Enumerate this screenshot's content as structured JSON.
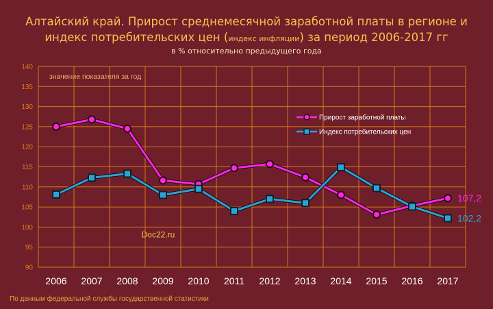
{
  "title_line1": "Алтайский край. Прирост среднемесячной заработной платы в регионе и",
  "title_line2_main": "индекс потребительских цен (",
  "title_line2_small": "индекс инфляции",
  "title_line2_end": ") за период 2006-2017 гг",
  "subtitle": "в % относительно предыдущего года",
  "footer": "По данным федеральной службы государственной статистики",
  "colors": {
    "background": "#6f1f2a",
    "grid": "#d97a16",
    "wage": "#ff26e6",
    "cpi": "#2aa3d6",
    "title": "#f4c24e"
  },
  "chart_data": {
    "type": "line",
    "ylabel_note": "значение показателя за год",
    "watermark": "Doc22.ru",
    "x": [
      "2006",
      "2007",
      "2008",
      "2009",
      "2010",
      "2011",
      "2012",
      "2013",
      "2014",
      "2015",
      "2016",
      "2017"
    ],
    "yticks": [
      "90",
      "95",
      "100",
      "105",
      "110",
      "115",
      "120",
      "125",
      "130",
      "135",
      "140"
    ],
    "ylim": [
      90,
      140
    ],
    "grid": true,
    "legend_position": "right",
    "series": [
      {
        "name": "Прирост заработной платы",
        "values": [
          125.0,
          126.8,
          124.5,
          111.6,
          110.7,
          114.7,
          115.7,
          112.4,
          108.0,
          103.1,
          105.3,
          107.2
        ],
        "end_label": "107,2"
      },
      {
        "name": "Индекс потребительских цен",
        "values": [
          108.1,
          112.3,
          113.3,
          108.0,
          109.5,
          104.0,
          107.0,
          106.0,
          114.9,
          109.7,
          105.1,
          102.2
        ],
        "end_label": "102,2"
      }
    ]
  }
}
